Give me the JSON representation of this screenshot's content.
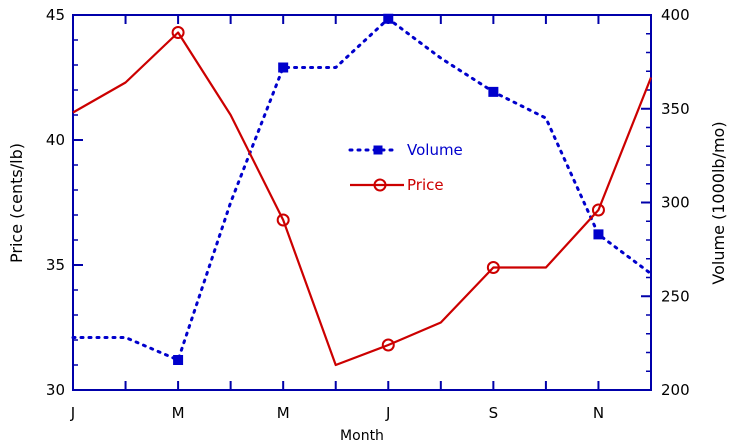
{
  "chart_data": {
    "type": "line",
    "title": "",
    "xlabel": "Month",
    "ylabel_left": "Price (cents/lb)",
    "ylabel_right": "Volume (1000lb/mo)",
    "x_tick_labels": [
      "J",
      "M",
      "M",
      "J",
      "S",
      "N"
    ],
    "x": [
      1,
      2,
      3,
      4,
      5,
      6,
      7,
      8,
      9,
      10,
      11,
      12
    ],
    "xlim": [
      1,
      12
    ],
    "ylim_left": [
      30,
      45
    ],
    "yticks_left": [
      "30",
      "35",
      "40",
      "45"
    ],
    "ylim_right": [
      200,
      400
    ],
    "yticks_right": [
      "200",
      "250",
      "300",
      "350",
      "400"
    ],
    "grid": false,
    "legend_position": "center",
    "series": [
      {
        "name": "Volume",
        "axis": "right",
        "color": "#0000cc",
        "line_style": "dotted",
        "marker": "filled-square",
        "marker_points": [
          3,
          5,
          7,
          9,
          11
        ],
        "values": [
          228,
          228,
          216,
          300,
          372,
          372,
          398,
          377,
          359,
          345,
          283,
          262
        ]
      },
      {
        "name": "Price",
        "axis": "left",
        "color": "#cc0000",
        "line_style": "solid",
        "marker": "open-circle",
        "marker_points": [
          3,
          5,
          7,
          9,
          11
        ],
        "values": [
          41.1,
          42.3,
          44.3,
          41.0,
          36.8,
          31.0,
          31.8,
          32.7,
          34.9,
          34.9,
          37.2,
          42.5
        ]
      }
    ]
  }
}
